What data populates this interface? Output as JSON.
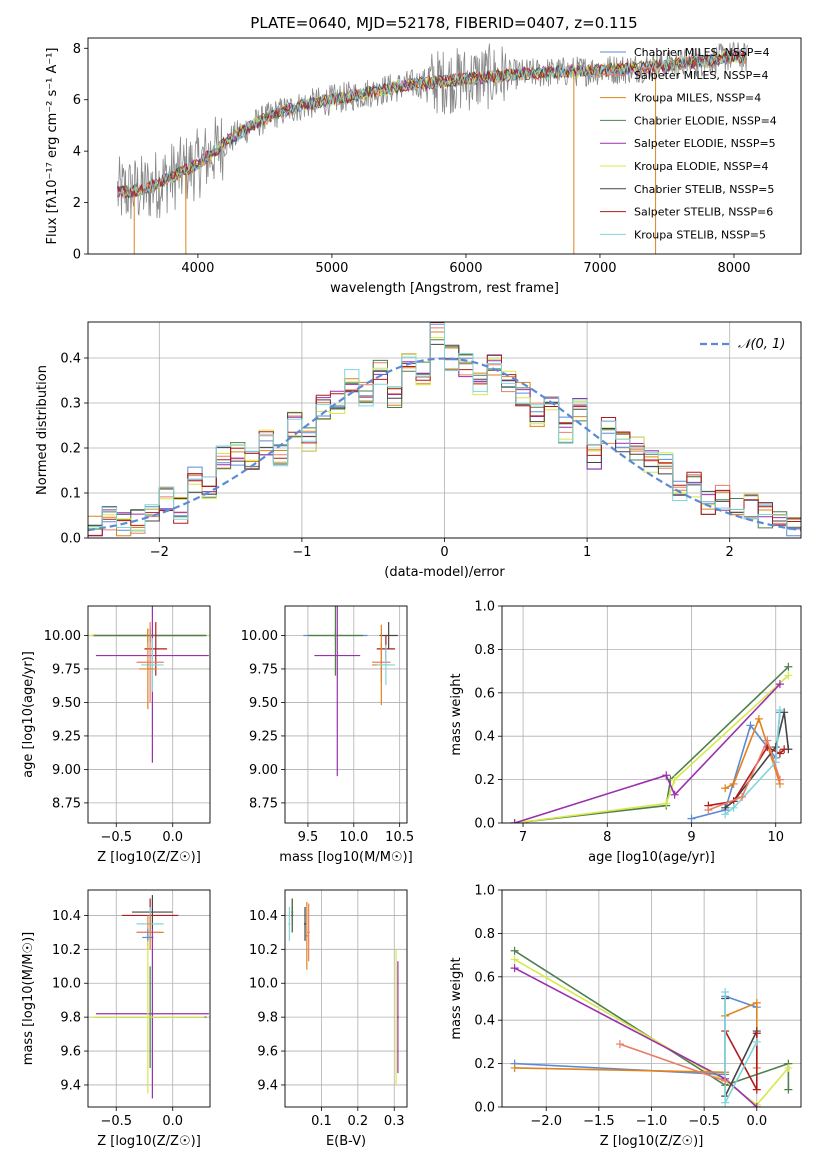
{
  "figure": {
    "title": "PLATE=0640, MJD=52178, FIBERID=0407, z=0.115"
  },
  "models": [
    {
      "imf": "Chabrier",
      "lib": "MILES",
      "nssp": 4,
      "color": "#5b8bd6"
    },
    {
      "imf": "Salpeter",
      "lib": "MILES",
      "nssp": 4,
      "color": "#e87f67"
    },
    {
      "imf": "Kroupa",
      "lib": "MILES",
      "nssp": 4,
      "color": "#e0821e"
    },
    {
      "imf": "Chabrier",
      "lib": "ELODIE",
      "nssp": 4,
      "color": "#4f7f4f"
    },
    {
      "imf": "Salpeter",
      "lib": "ELODIE",
      "nssp": 5,
      "color": "#9b2fae"
    },
    {
      "imf": "Kroupa",
      "lib": "ELODIE",
      "nssp": 4,
      "color": "#d7e84a"
    },
    {
      "imf": "Chabrier",
      "lib": "STELIB",
      "nssp": 5,
      "color": "#444444"
    },
    {
      "imf": "Salpeter",
      "lib": "STELIB",
      "nssp": 6,
      "color": "#b11b1b"
    },
    {
      "imf": "Kroupa",
      "lib": "STELIB",
      "nssp": 5,
      "color": "#7fd6dc"
    }
  ],
  "chart_data": [
    {
      "id": "spectrum",
      "type": "line",
      "title": "PLATE=0640, MJD=52178, FIBERID=0407, z=0.115",
      "xlabel": "wavelength [Angstrom, rest frame]",
      "ylabel": "Flux [fλ10⁻¹⁷ erg cm⁻² s⁻¹ A⁻¹]",
      "xlim": [
        3180,
        8500
      ],
      "ylim": [
        0,
        8.4
      ],
      "xticks": [
        "4000",
        "5000",
        "6000",
        "7000",
        "8000"
      ],
      "yticks": [
        "0",
        "2",
        "4",
        "6",
        "8"
      ],
      "legend": [
        "Chabrier MILES, N_SSP=4",
        "Salpeter MILES, N_SSP=4",
        "Kroupa MILES, N_SSP=4",
        "Chabrier ELODIE, N_SSP=4",
        "Salpeter ELODIE, N_SSP=5",
        "Kroupa ELODIE, N_SSP=4",
        "Chabrier STELIB, N_SSP=5",
        "Salpeter STELIB, N_SSP=6",
        "Kroupa STELIB, N_SSP=5"
      ],
      "continuum": {
        "x": [
          3400,
          3600,
          3800,
          4000,
          4200,
          4400,
          4600,
          4800,
          5000,
          5200,
          5400,
          5600,
          5800,
          6000,
          6200,
          6400,
          6600,
          6800,
          7000,
          7200,
          7400,
          7600,
          7800,
          8000,
          8100
        ],
        "y": [
          2.4,
          2.5,
          3.0,
          3.5,
          4.3,
          5.0,
          5.5,
          5.8,
          6.0,
          6.2,
          6.4,
          6.6,
          6.7,
          6.8,
          6.9,
          7.0,
          7.05,
          7.1,
          7.15,
          7.2,
          7.3,
          7.4,
          7.5,
          7.7,
          7.6
        ]
      },
      "grid": false
    },
    {
      "id": "residuals",
      "type": "line",
      "xlabel": "(data-model)/error",
      "ylabel": "Normed distribution",
      "xlim": [
        -2.5,
        2.5
      ],
      "ylim": [
        0,
        0.48
      ],
      "xticks": [
        "-2",
        "-1",
        "0",
        "1",
        "2"
      ],
      "yticks": [
        "0.0",
        "0.1",
        "0.2",
        "0.3",
        "0.4"
      ],
      "legend": [
        "𝒩(0, 1)"
      ],
      "bins": [
        -2.5,
        -2.4,
        -2.3,
        -2.2,
        -2.1,
        -2.0,
        -1.9,
        -1.8,
        -1.7,
        -1.6,
        -1.5,
        -1.4,
        -1.3,
        -1.2,
        -1.1,
        -1.0,
        -0.9,
        -0.8,
        -0.7,
        -0.6,
        -0.5,
        -0.4,
        -0.3,
        -0.2,
        -0.1,
        0.0,
        0.1,
        0.2,
        0.3,
        0.4,
        0.5,
        0.6,
        0.7,
        0.8,
        0.9,
        1.0,
        1.1,
        1.2,
        1.3,
        1.4,
        1.5,
        1.6,
        1.7,
        1.8,
        1.9,
        2.0,
        2.1,
        2.2,
        2.3,
        2.4
      ],
      "hist": [
        0.03,
        0.04,
        0.03,
        0.04,
        0.05,
        0.09,
        0.06,
        0.13,
        0.11,
        0.18,
        0.19,
        0.17,
        0.21,
        0.19,
        0.25,
        0.22,
        0.29,
        0.3,
        0.35,
        0.32,
        0.37,
        0.31,
        0.4,
        0.37,
        0.46,
        0.4,
        0.38,
        0.34,
        0.38,
        0.35,
        0.32,
        0.27,
        0.3,
        0.24,
        0.29,
        0.18,
        0.24,
        0.21,
        0.2,
        0.17,
        0.17,
        0.11,
        0.12,
        0.08,
        0.09,
        0.06,
        0.07,
        0.05,
        0.04,
        0.03
      ],
      "grid": true
    },
    {
      "id": "age-vs-Z",
      "type": "scatter",
      "xlabel": "Z [log10(Z/Z☉)]",
      "ylabel": "age  [log10(age/yr)]",
      "xlim": [
        -0.75,
        0.33
      ],
      "ylim": [
        8.6,
        10.22
      ],
      "xticks": [
        "-0.5",
        "0.0"
      ],
      "yticks": [
        "8.75",
        "9.00",
        "9.25",
        "9.50",
        "9.75",
        "10.00"
      ],
      "grid": true
    },
    {
      "id": "age-vs-mass",
      "type": "scatter",
      "xlabel": "mass [log10(M/M☉)]",
      "xlim": [
        9.25,
        10.58
      ],
      "ylim": [
        8.6,
        10.22
      ],
      "xticks": [
        "9.5",
        "10.0",
        "10.5"
      ],
      "yticks": [
        "8.75",
        "9.00",
        "9.25",
        "9.50",
        "9.75",
        "10.00"
      ],
      "grid": true
    },
    {
      "id": "mass-weight-vs-age",
      "type": "line",
      "xlabel": "age  [log10(age/yr)]",
      "ylabel": "mass weight",
      "xlim": [
        6.75,
        10.3
      ],
      "ylim": [
        0,
        1
      ],
      "xticks": [
        "7",
        "8",
        "9",
        "10"
      ],
      "yticks": [
        "0.0",
        "0.2",
        "0.4",
        "0.6",
        "0.8",
        "1.0"
      ],
      "grid": true
    },
    {
      "id": "mass-vs-Z",
      "type": "scatter",
      "xlabel": "Z [log10(Z/Z☉)]",
      "ylabel": "mass [log10(M/M☉)]",
      "xlim": [
        -0.75,
        0.33
      ],
      "ylim": [
        9.27,
        10.55
      ],
      "xticks": [
        "-0.5",
        "0.0"
      ],
      "yticks": [
        "9.4",
        "9.6",
        "9.8",
        "10.0",
        "10.2",
        "10.4"
      ],
      "grid": true
    },
    {
      "id": "mass-vs-ebv",
      "type": "scatter",
      "xlabel": "E(B-V)",
      "xlim": [
        0.0,
        0.335
      ],
      "ylim": [
        9.27,
        10.55
      ],
      "xticks": [
        "0.1",
        "0.2",
        "0.3"
      ],
      "yticks": [
        "9.4",
        "9.6",
        "9.8",
        "10.0",
        "10.2",
        "10.4"
      ],
      "grid": true
    },
    {
      "id": "mass-weight-vs-Z",
      "type": "line",
      "xlabel": "Z [log10(Z/Z☉)]",
      "ylabel": "mass weight",
      "xlim": [
        -2.42,
        0.42
      ],
      "ylim": [
        0,
        1
      ],
      "xticks": [
        "-2.0",
        "-1.5",
        "-1.0",
        "-0.5",
        "0.0"
      ],
      "yticks": [
        "0.0",
        "0.2",
        "0.4",
        "0.6",
        "0.8",
        "1.0"
      ],
      "grid": true
    }
  ]
}
